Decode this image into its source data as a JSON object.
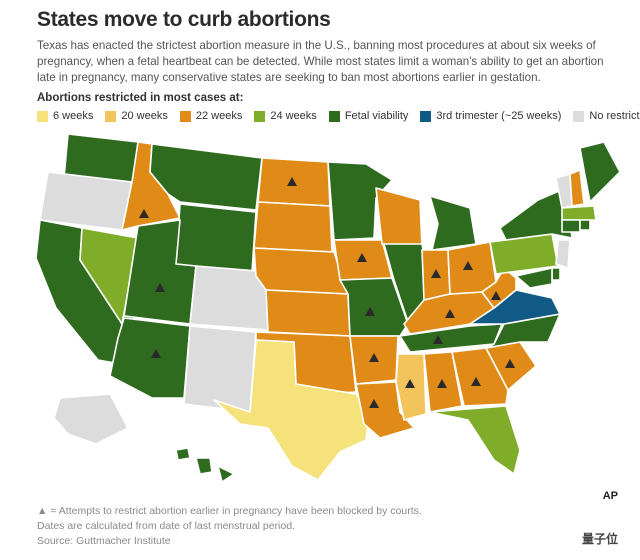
{
  "title": "States move to curb abortions",
  "subtitle": "Texas has enacted the strictest abortion measure in the U.S., banning most procedures at about six weeks of pregnancy, when a fetal heartbeat can be detected. While most states limit a woman's ability to get an abortion late in pregnancy, many conservative states are seeking to ban most abortions earlier in gestation.",
  "legend": {
    "title": "Abortions restricted in most cases at:",
    "items": [
      {
        "label": "6 weeks",
        "color": "#f6e27a"
      },
      {
        "label": "20 weeks",
        "color": "#f3c35c"
      },
      {
        "label": "22 weeks",
        "color": "#e08a17"
      },
      {
        "label": "24 weeks",
        "color": "#7fad2a"
      },
      {
        "label": "Fetal viability",
        "color": "#2e6b1e"
      },
      {
        "label": "3rd trimester (~25 weeks)",
        "color": "#125a86"
      },
      {
        "label": "No restrictions",
        "color": "#dcdcdc"
      }
    ]
  },
  "states": {
    "WA": "Fetal viability",
    "OR": "No restrictions",
    "CA": "Fetal viability",
    "NV": "24 weeks",
    "ID": "22 weeks",
    "MT": "Fetal viability",
    "WY": "Fetal viability",
    "UT": "Fetal viability",
    "AZ": "Fetal viability",
    "CO": "No restrictions",
    "NM": "No restrictions",
    "ND": "22 weeks",
    "SD": "22 weeks",
    "NE": "22 weeks",
    "KS": "22 weeks",
    "OK": "22 weeks",
    "TX": "6 weeks",
    "MN": "Fetal viability",
    "IA": "22 weeks",
    "MO": "Fetal viability",
    "AR": "22 weeks",
    "LA": "22 weeks",
    "WI": "22 weeks",
    "IL": "Fetal viability",
    "MS": "20 weeks",
    "MI": "Fetal viability",
    "IN": "22 weeks",
    "KY": "22 weeks",
    "TN": "Fetal viability",
    "AL": "22 weeks",
    "OH": "22 weeks",
    "GA": "22 weeks",
    "FL": "24 weeks",
    "SC": "22 weeks",
    "NC": "Fetal viability",
    "VA": "3rd trimester (~25 weeks)",
    "WV": "22 weeks",
    "PA": "24 weeks",
    "NY": "Fetal viability",
    "VT": "No restrictions",
    "NH": "22 weeks",
    "ME": "Fetal viability",
    "MA": "24 weeks",
    "CT": "Fetal viability",
    "RI": "Fetal viability",
    "NJ": "No restrictions",
    "DE": "Fetal viability",
    "MD": "Fetal viability",
    "AK": "No restrictions",
    "HI": "Fetal viability"
  },
  "blocked_by_courts": [
    "ID",
    "UT",
    "AZ",
    "ND",
    "IA",
    "MO",
    "AR",
    "LA",
    "MS",
    "AL",
    "GA",
    "SC",
    "KY",
    "TN",
    "IN",
    "OH",
    "WV"
  ],
  "footnotes": [
    "▲ = Attempts to restrict abortion earlier in pregnancy have been blocked by courts.",
    "Dates are calculated from date of last menstrual period.",
    "Source: Guttmacher Institute"
  ],
  "logo": "AP",
  "watermark": "量子位"
}
